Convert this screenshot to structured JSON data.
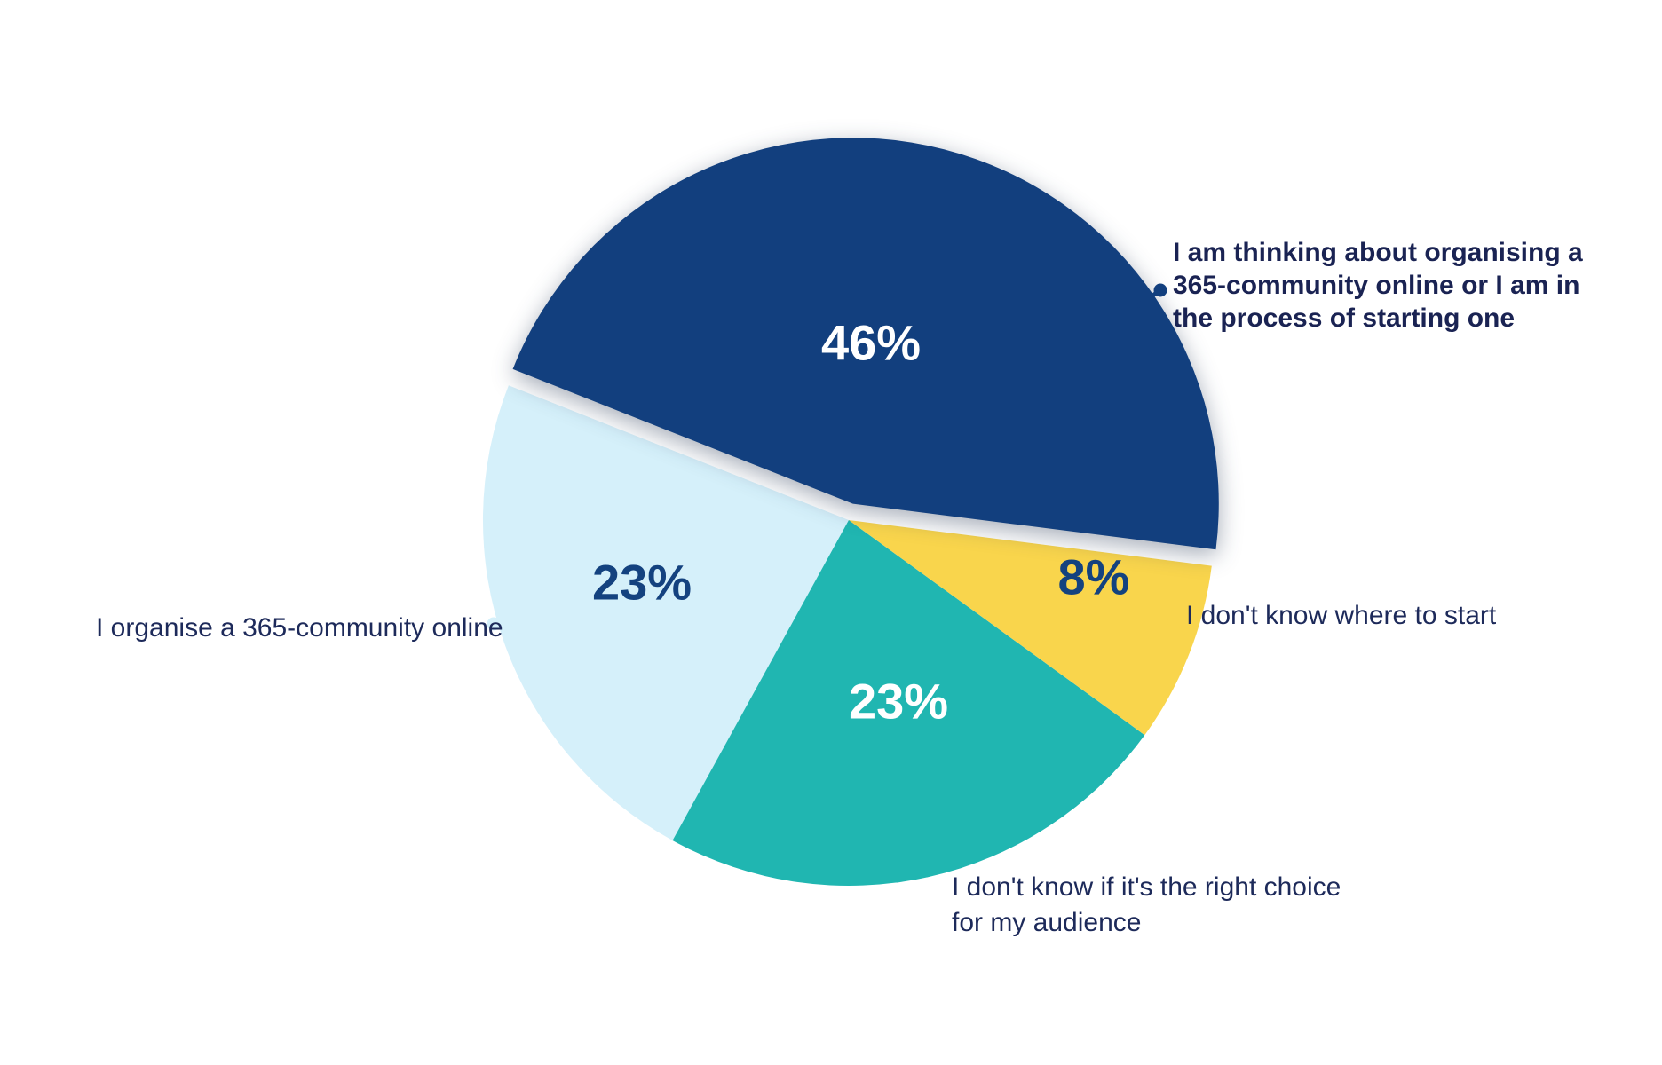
{
  "figure": {
    "background_color": "#FFFFFF",
    "label_text_color": "#1D2A5A"
  },
  "chart_data": {
    "type": "pie",
    "title": "",
    "total": 100,
    "start_angle_deg": -7.2,
    "direction": "counterclockwise",
    "legend_position": "none",
    "labels_style": "external labels with leader dots, percent values inside slices",
    "slices": [
      {
        "name": "thinking-about-organising",
        "label": "I am thinking about organising a 365-community online or I am in the process of starting one",
        "label_lines": [
          "I am thinking about organising a",
          "365-community online or I am in",
          "the process of starting one"
        ],
        "value": 46,
        "display": "46%",
        "color": "#123F7E",
        "pct_color": "#FFFFFF",
        "exploded": true
      },
      {
        "name": "organise-online",
        "label": "I organise a 365-community online",
        "label_lines": [
          "I organise a 365-community online"
        ],
        "value": 23,
        "display": "23%",
        "color": "#D5F0FA",
        "pct_color": "#14427F",
        "exploded": false
      },
      {
        "name": "not-sure-right-choice",
        "label": "I don't know if it's the right choice for my audience",
        "label_lines": [
          "I don't know if it's the right choice",
          "for my audience"
        ],
        "value": 23,
        "display": "23%",
        "color": "#20B6B1",
        "pct_color": "#FFFFFF",
        "exploded": false
      },
      {
        "name": "dont-know-where-to-start",
        "label": "I don't know where to start",
        "label_lines": [
          "I don't know where to start"
        ],
        "value": 8,
        "display": "8%",
        "color": "#F9D54C",
        "pct_color": "#14427F",
        "exploded": false
      }
    ]
  }
}
